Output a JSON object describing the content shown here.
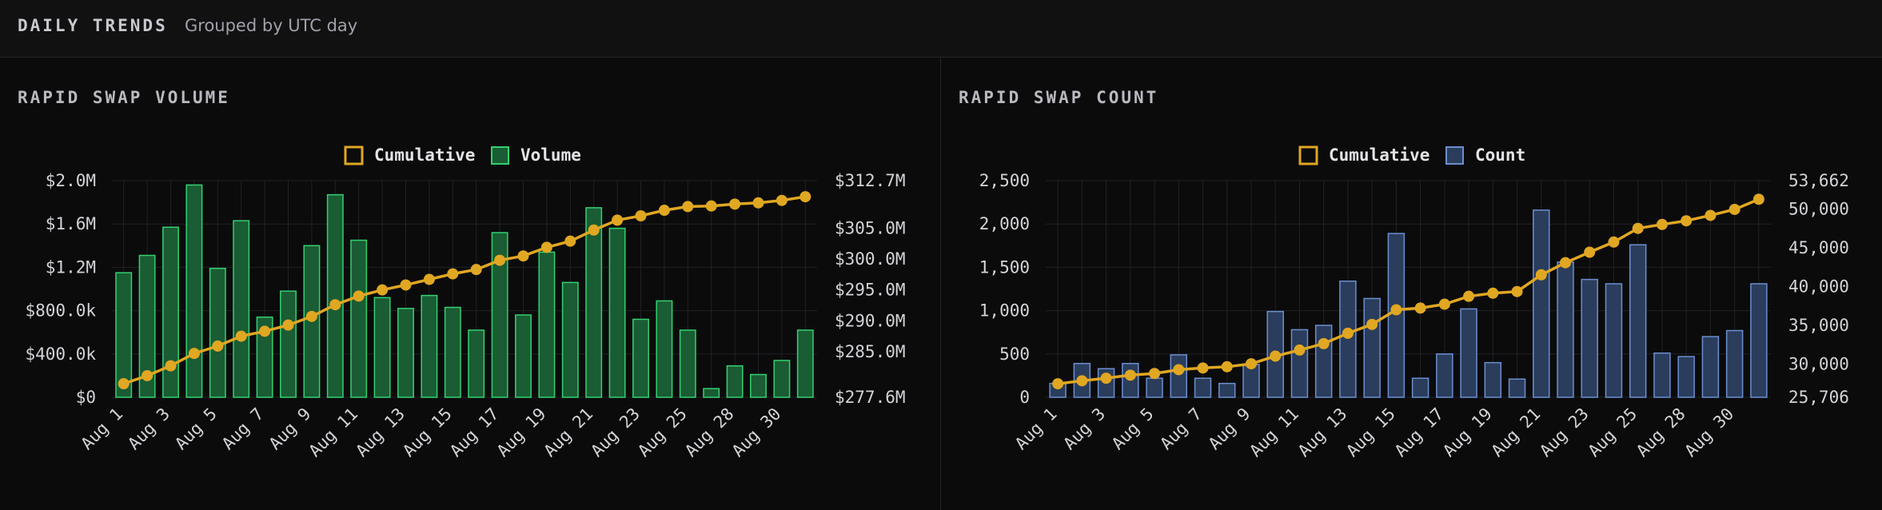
{
  "header": {
    "title": "DAILY TRENDS",
    "subtitle": "Grouped by UTC day"
  },
  "charts": {
    "volume": {
      "panel_title": "RAPID SWAP VOLUME"
    },
    "count": {
      "panel_title": "RAPID SWAP COUNT"
    }
  },
  "colors": {
    "cumulative": "#e0a722",
    "volume_fill": "#1a5c34",
    "volume_stroke": "#34d070",
    "count_fill": "#2b3d5c",
    "count_stroke": "#6b8fcf",
    "grid": "#222226",
    "tick_text": "#d4d4d8"
  },
  "chart_data": [
    {
      "type": "bar",
      "title": "RAPID SWAP VOLUME",
      "categories": [
        "Aug 1",
        "Aug 2",
        "Aug 3",
        "Aug 4",
        "Aug 5",
        "Aug 6",
        "Aug 7",
        "Aug 8",
        "Aug 9",
        "Aug 10",
        "Aug 11",
        "Aug 12",
        "Aug 13",
        "Aug 14",
        "Aug 15",
        "Aug 16",
        "Aug 17",
        "Aug 18",
        "Aug 19",
        "Aug 20",
        "Aug 21",
        "Aug 22",
        "Aug 23",
        "Aug 24",
        "Aug 25",
        "Aug 26",
        "Aug 28",
        "Aug 29",
        "Aug 30",
        "Aug 31"
      ],
      "x_tick_labels": [
        "Aug 1",
        "Aug 3",
        "Aug 5",
        "Aug 7",
        "Aug 9",
        "Aug 11",
        "Aug 13",
        "Aug 15",
        "Aug 17",
        "Aug 19",
        "Aug 21",
        "Aug 23",
        "Aug 25",
        "Aug 28",
        "Aug 30"
      ],
      "legend": {
        "placement": "top-center",
        "items": [
          {
            "label": "Cumulative",
            "kind": "line"
          },
          {
            "label": "Volume",
            "kind": "bar"
          }
        ]
      },
      "y_left": {
        "ylim": [
          0,
          2000000
        ],
        "ticks": [
          0,
          400000,
          800000,
          1200000,
          1600000,
          2000000
        ],
        "tick_labels": [
          "$0",
          "$400.0k",
          "$800.0k",
          "$1.2M",
          "$1.6M",
          "$2.0M"
        ]
      },
      "y_right": {
        "ylim": [
          277.6,
          312.7
        ],
        "ticks": [
          277.6,
          285.0,
          290.0,
          295.0,
          300.0,
          305.0,
          312.7
        ],
        "tick_labels": [
          "$277.6M",
          "$285.0M",
          "$290.0M",
          "$295.0M",
          "$300.0M",
          "$305.0M",
          "$312.7M"
        ]
      },
      "grid": true,
      "series": [
        {
          "name": "Volume",
          "type": "bar",
          "axis": "left",
          "values": [
            1150000,
            1310000,
            1570000,
            1960000,
            1190000,
            1630000,
            740000,
            980000,
            1400000,
            1870000,
            1450000,
            920000,
            820000,
            940000,
            830000,
            620000,
            1520000,
            760000,
            1340000,
            1060000,
            1750000,
            1560000,
            720000,
            890000,
            620000,
            80000,
            290000,
            210000,
            340000,
            620000
          ]
        },
        {
          "name": "Cumulative",
          "type": "line",
          "axis": "right",
          "values": [
            279.8,
            281.1,
            282.7,
            284.7,
            285.9,
            287.5,
            288.3,
            289.3,
            290.7,
            292.6,
            294.0,
            295.0,
            295.8,
            296.7,
            297.6,
            298.3,
            299.8,
            300.5,
            301.9,
            302.9,
            304.7,
            306.3,
            307.0,
            307.9,
            308.5,
            308.6,
            308.9,
            309.1,
            309.5,
            310.1
          ]
        }
      ]
    },
    {
      "type": "bar",
      "title": "RAPID SWAP COUNT",
      "categories": [
        "Aug 1",
        "Aug 2",
        "Aug 3",
        "Aug 4",
        "Aug 5",
        "Aug 6",
        "Aug 7",
        "Aug 8",
        "Aug 9",
        "Aug 10",
        "Aug 11",
        "Aug 12",
        "Aug 13",
        "Aug 14",
        "Aug 15",
        "Aug 16",
        "Aug 17",
        "Aug 18",
        "Aug 19",
        "Aug 20",
        "Aug 21",
        "Aug 22",
        "Aug 23",
        "Aug 24",
        "Aug 25",
        "Aug 26",
        "Aug 28",
        "Aug 29",
        "Aug 30",
        "Aug 31"
      ],
      "x_tick_labels": [
        "Aug 1",
        "Aug 3",
        "Aug 5",
        "Aug 7",
        "Aug 9",
        "Aug 11",
        "Aug 13",
        "Aug 15",
        "Aug 17",
        "Aug 19",
        "Aug 21",
        "Aug 23",
        "Aug 25",
        "Aug 28",
        "Aug 30"
      ],
      "legend": {
        "placement": "top-center",
        "items": [
          {
            "label": "Cumulative",
            "kind": "line"
          },
          {
            "label": "Count",
            "kind": "bar"
          }
        ]
      },
      "y_left": {
        "ylim": [
          0,
          2500
        ],
        "ticks": [
          0,
          500,
          1000,
          1500,
          2000,
          2500
        ],
        "tick_labels": [
          "0",
          "500",
          "1,000",
          "1,500",
          "2,000",
          "2,500"
        ]
      },
      "y_right": {
        "ylim": [
          25706,
          53662
        ],
        "ticks": [
          25706,
          30000,
          35000,
          40000,
          45000,
          50000,
          53662
        ],
        "tick_labels": [
          "25,706",
          "30,000",
          "35,000",
          "40,000",
          "45,000",
          "50,000",
          "53,662"
        ]
      },
      "grid": true,
      "series": [
        {
          "name": "Count",
          "type": "bar",
          "axis": "left",
          "values": [
            160,
            390,
            330,
            390,
            220,
            490,
            220,
            160,
            380,
            990,
            780,
            830,
            1340,
            1140,
            1890,
            220,
            500,
            1020,
            400,
            210,
            2160,
            1560,
            1360,
            1310,
            1760,
            510,
            470,
            700,
            770,
            1310
          ]
        },
        {
          "name": "Cumulative",
          "type": "line",
          "axis": "right",
          "values": [
            27450,
            27840,
            28170,
            28560,
            28780,
            29270,
            29490,
            29650,
            30030,
            31020,
            31800,
            32630,
            33970,
            35110,
            37000,
            37220,
            37720,
            38740,
            39140,
            39350,
            41510,
            43070,
            44430,
            45740,
            47500,
            48010,
            48480,
            49180,
            49950,
            51260
          ]
        }
      ]
    }
  ]
}
